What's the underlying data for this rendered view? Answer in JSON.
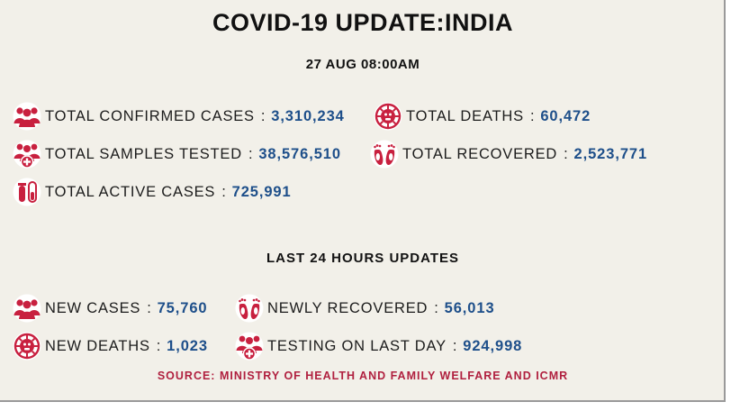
{
  "header": {
    "title": "COVID-19 UPDATE:INDIA",
    "date": "27 AUG 08:00AM"
  },
  "separator": ":",
  "totals": [
    {
      "label": "TOTAL CONFIRMED CASES",
      "value": "3,310,234",
      "icon": "people-group-icon"
    },
    {
      "label": "TOTAL DEATHS",
      "value": "60,472",
      "icon": "virus-death-icon"
    },
    {
      "label": "TOTAL SAMPLES TESTED",
      "value": "38,576,510",
      "icon": "people-test-icon"
    },
    {
      "label": "TOTAL RECOVERED",
      "value": "2,523,771",
      "icon": "footprints-icon"
    },
    {
      "label": "TOTAL ACTIVE CASES",
      "value": "725,991",
      "icon": "test-tube-icon"
    }
  ],
  "last24": {
    "heading": "LAST 24 HOURS UPDATES",
    "items": [
      {
        "label": "NEW CASES",
        "value": "75,760",
        "icon": "people-group-icon"
      },
      {
        "label": "NEWLY RECOVERED",
        "value": "56,013",
        "icon": "footprints-icon"
      },
      {
        "label": "NEW DEATHS",
        "value": "1,023",
        "icon": "virus-death-icon"
      },
      {
        "label": "TESTING ON LAST DAY",
        "value": "924,998",
        "icon": "people-test-icon"
      }
    ]
  },
  "source": "SOURCE: MINISTRY OF HEALTH AND FAMILY WELFARE AND ICMR",
  "colors": {
    "background": "#f2f0e9",
    "icon": "#c8203f",
    "value": "#1e4f8a",
    "source": "#b0203f"
  }
}
